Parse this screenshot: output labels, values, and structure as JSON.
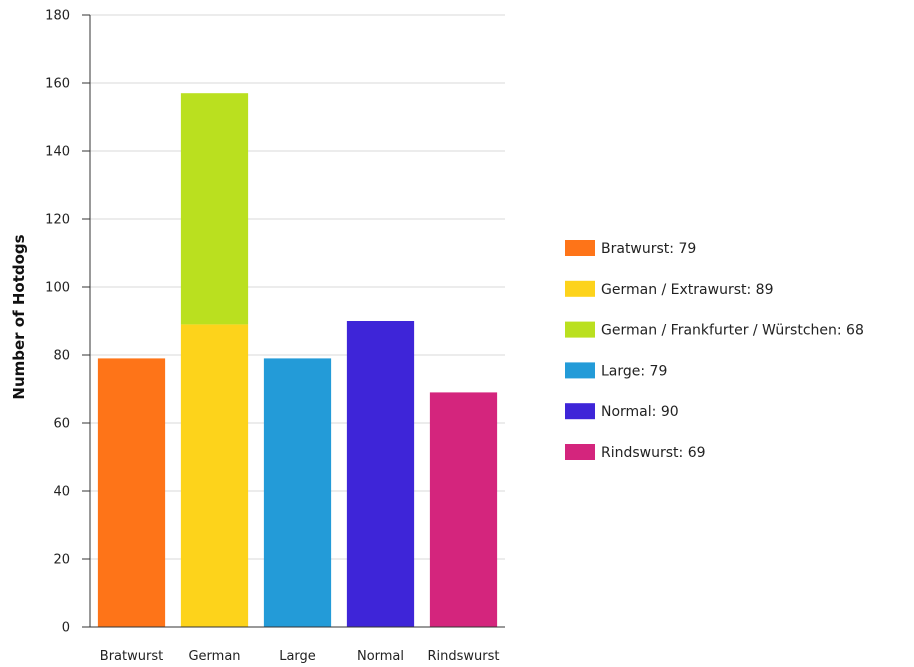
{
  "chart_data": {
    "type": "bar",
    "stacked": true,
    "title": "",
    "xlabel": "",
    "ylabel": "Number of Hotdogs",
    "ylim": [
      0,
      180
    ],
    "yticks": [
      0,
      20,
      40,
      60,
      80,
      100,
      120,
      140,
      160,
      180
    ],
    "grid": true,
    "legend_position": "right",
    "categories": [
      "Bratwurst",
      "German",
      "Large",
      "Normal",
      "Rindswurst"
    ],
    "series": [
      {
        "name": "Bratwurst",
        "color": "#fe7418",
        "values": [
          79,
          0,
          0,
          0,
          0
        ]
      },
      {
        "name": "German / Extrawurst",
        "color": "#fdd31b",
        "values": [
          0,
          89,
          0,
          0,
          0
        ]
      },
      {
        "name": "German / Frankfurter / Würstchen",
        "color": "#bae01f",
        "values": [
          0,
          68,
          0,
          0,
          0
        ]
      },
      {
        "name": "Large",
        "color": "#239bd8",
        "values": [
          0,
          0,
          79,
          0,
          0
        ]
      },
      {
        "name": "Normal",
        "color": "#3e25d8",
        "values": [
          0,
          0,
          0,
          90,
          0
        ]
      },
      {
        "name": "Rindswurst",
        "color": "#d4257d",
        "values": [
          0,
          0,
          0,
          0,
          69
        ]
      }
    ],
    "legend": [
      {
        "label": "Bratwurst: 79",
        "color": "#fe7418"
      },
      {
        "label": "German / Extrawurst: 89",
        "color": "#fdd31b"
      },
      {
        "label": "German / Frankfurter / Würstchen: 68",
        "color": "#bae01f"
      },
      {
        "label": "Large: 79",
        "color": "#239bd8"
      },
      {
        "label": "Normal: 90",
        "color": "#3e25d8"
      },
      {
        "label": "Rindswurst: 69",
        "color": "#d4257d"
      }
    ]
  }
}
